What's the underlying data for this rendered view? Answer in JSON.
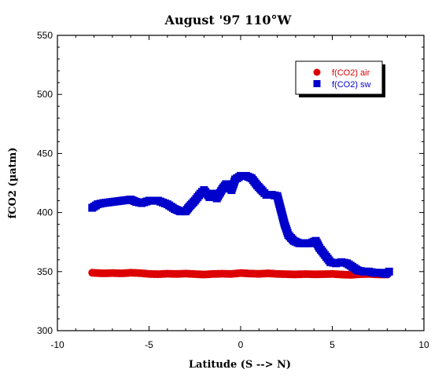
{
  "chart_data": {
    "type": "scatter",
    "title": "August '97 110°W",
    "xlabel": "Latitude (S --> N)",
    "ylabel": "fCO2 (µatm)",
    "xlim": [
      -10,
      10
    ],
    "ylim": [
      300,
      550
    ],
    "x_ticks": [
      -10,
      -5,
      0,
      5,
      10
    ],
    "y_ticks": [
      300,
      350,
      400,
      450,
      500,
      550
    ],
    "x_tick_labels": [
      "-10",
      "-5",
      "0",
      "5",
      "10"
    ],
    "y_tick_labels": [
      "300",
      "350",
      "400",
      "450",
      "500",
      "550"
    ],
    "grid": false,
    "legend_position": "top-right",
    "series": [
      {
        "name": "f(CO2) air",
        "color": "#dd0000",
        "marker": "circle",
        "x": [
          -8.1,
          -7.5,
          -7.0,
          -6.5,
          -6.0,
          -5.5,
          -5.0,
          -4.5,
          -4.0,
          -3.5,
          -3.0,
          -2.5,
          -2.0,
          -1.5,
          -1.0,
          -0.5,
          0.0,
          0.5,
          1.0,
          1.5,
          2.0,
          2.5,
          3.0,
          3.5,
          4.0,
          4.5,
          5.0,
          5.5,
          6.0,
          6.5,
          7.0,
          7.5,
          8.0
        ],
        "y": [
          349,
          348.5,
          348.8,
          348.5,
          349,
          348.7,
          348,
          347.8,
          348.2,
          348,
          348.3,
          347.9,
          347.5,
          348,
          348.2,
          348,
          348.8,
          348.3,
          348.1,
          348.5,
          348,
          347.8,
          347.6,
          347.9,
          347.7,
          347.8,
          348,
          347.5,
          347.2,
          347.8,
          348,
          347.6,
          347.5
        ]
      },
      {
        "name": "f(CO2) sw",
        "color": "#0000cc",
        "marker": "square",
        "x": [
          -8.1,
          -7.8,
          -7.5,
          -7.0,
          -6.5,
          -6.0,
          -5.7,
          -5.4,
          -5.0,
          -4.5,
          -4.0,
          -3.6,
          -3.3,
          -3.0,
          -2.8,
          -2.5,
          -2.2,
          -2.0,
          -1.7,
          -1.5,
          -1.3,
          -1.0,
          -0.8,
          -0.5,
          -0.3,
          0.0,
          0.3,
          0.6,
          0.9,
          1.2,
          1.4,
          1.7,
          2.0,
          2.2,
          2.4,
          2.6,
          2.9,
          3.2,
          3.5,
          3.8,
          4.1,
          4.3,
          4.6,
          4.9,
          5.2,
          5.5,
          5.8,
          6.1,
          6.4,
          6.7,
          7.0,
          7.3,
          7.6,
          7.9,
          8.1
        ],
        "y": [
          404,
          407,
          408,
          409,
          410,
          411,
          409,
          408,
          410,
          410,
          407,
          403,
          401,
          401,
          405,
          410,
          416,
          419,
          413,
          416,
          412,
          420,
          424,
          419,
          428,
          431,
          431,
          429,
          423,
          418,
          415,
          415,
          414,
          402,
          390,
          381,
          376,
          374,
          374,
          374,
          376,
          370,
          364,
          358,
          357,
          358,
          357,
          354,
          351,
          350,
          350,
          349,
          349,
          348,
          350
        ]
      }
    ]
  }
}
